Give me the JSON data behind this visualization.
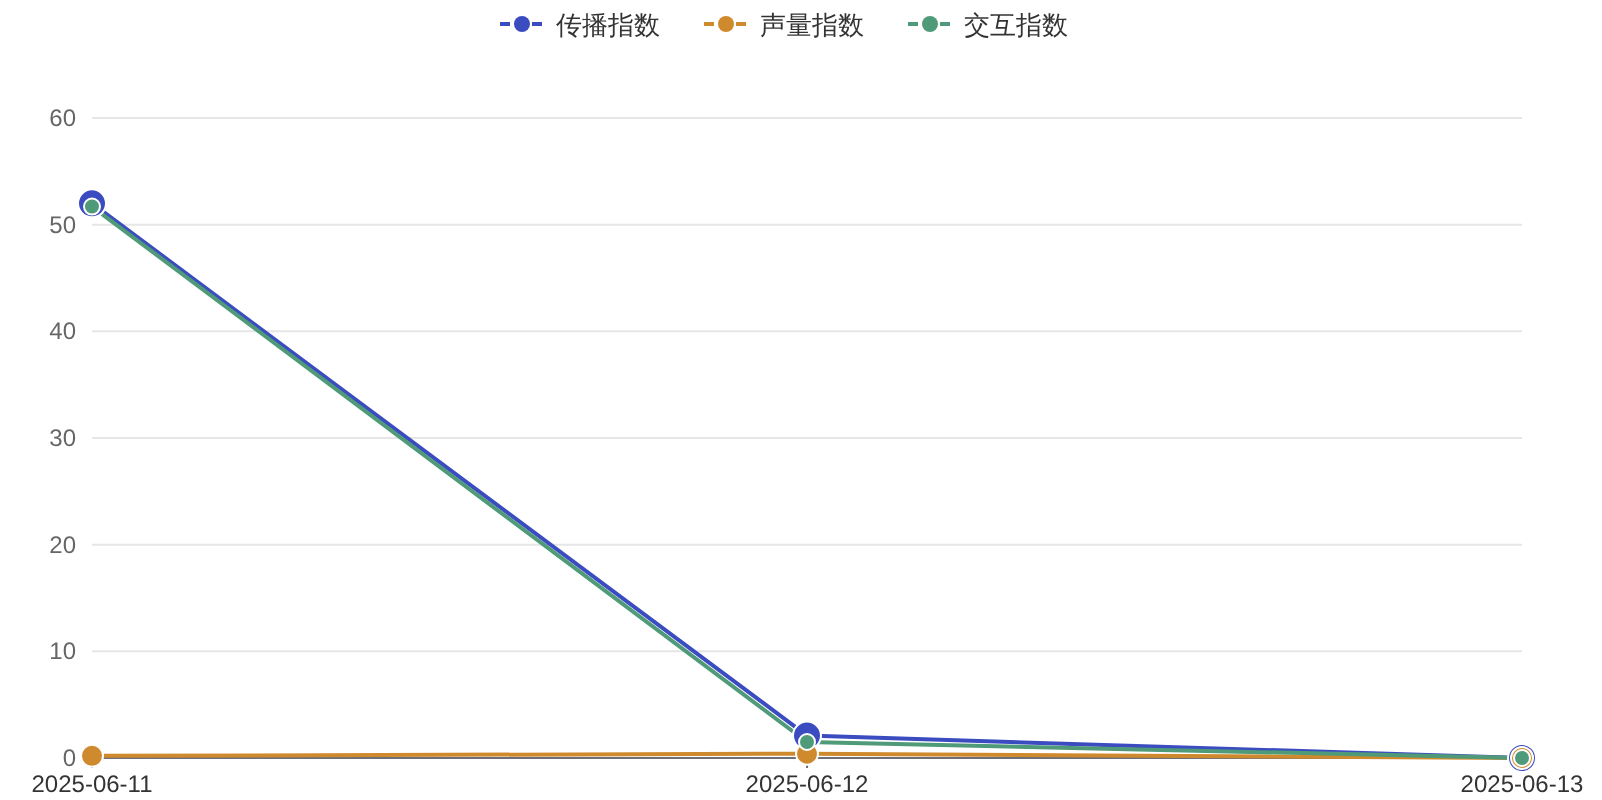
{
  "chart_data": {
    "type": "line",
    "categories": [
      "2025-06-11",
      "2025-06-12",
      "2025-06-13"
    ],
    "series": [
      {
        "name": "传播指数",
        "color": "#3b4cc0",
        "values": [
          52,
          2.1,
          0
        ]
      },
      {
        "name": "声量指数",
        "color": "#d08a2e",
        "values": [
          0.2,
          0.4,
          0
        ]
      },
      {
        "name": "交互指数",
        "color": "#4f9a78",
        "values": [
          51.7,
          1.5,
          0
        ]
      }
    ],
    "ylim": [
      0,
      60
    ],
    "yticks": [
      0,
      10,
      20,
      30,
      40,
      50,
      60
    ],
    "grid": "y",
    "legend": "top",
    "marker": "circle",
    "line_style": "solid"
  }
}
